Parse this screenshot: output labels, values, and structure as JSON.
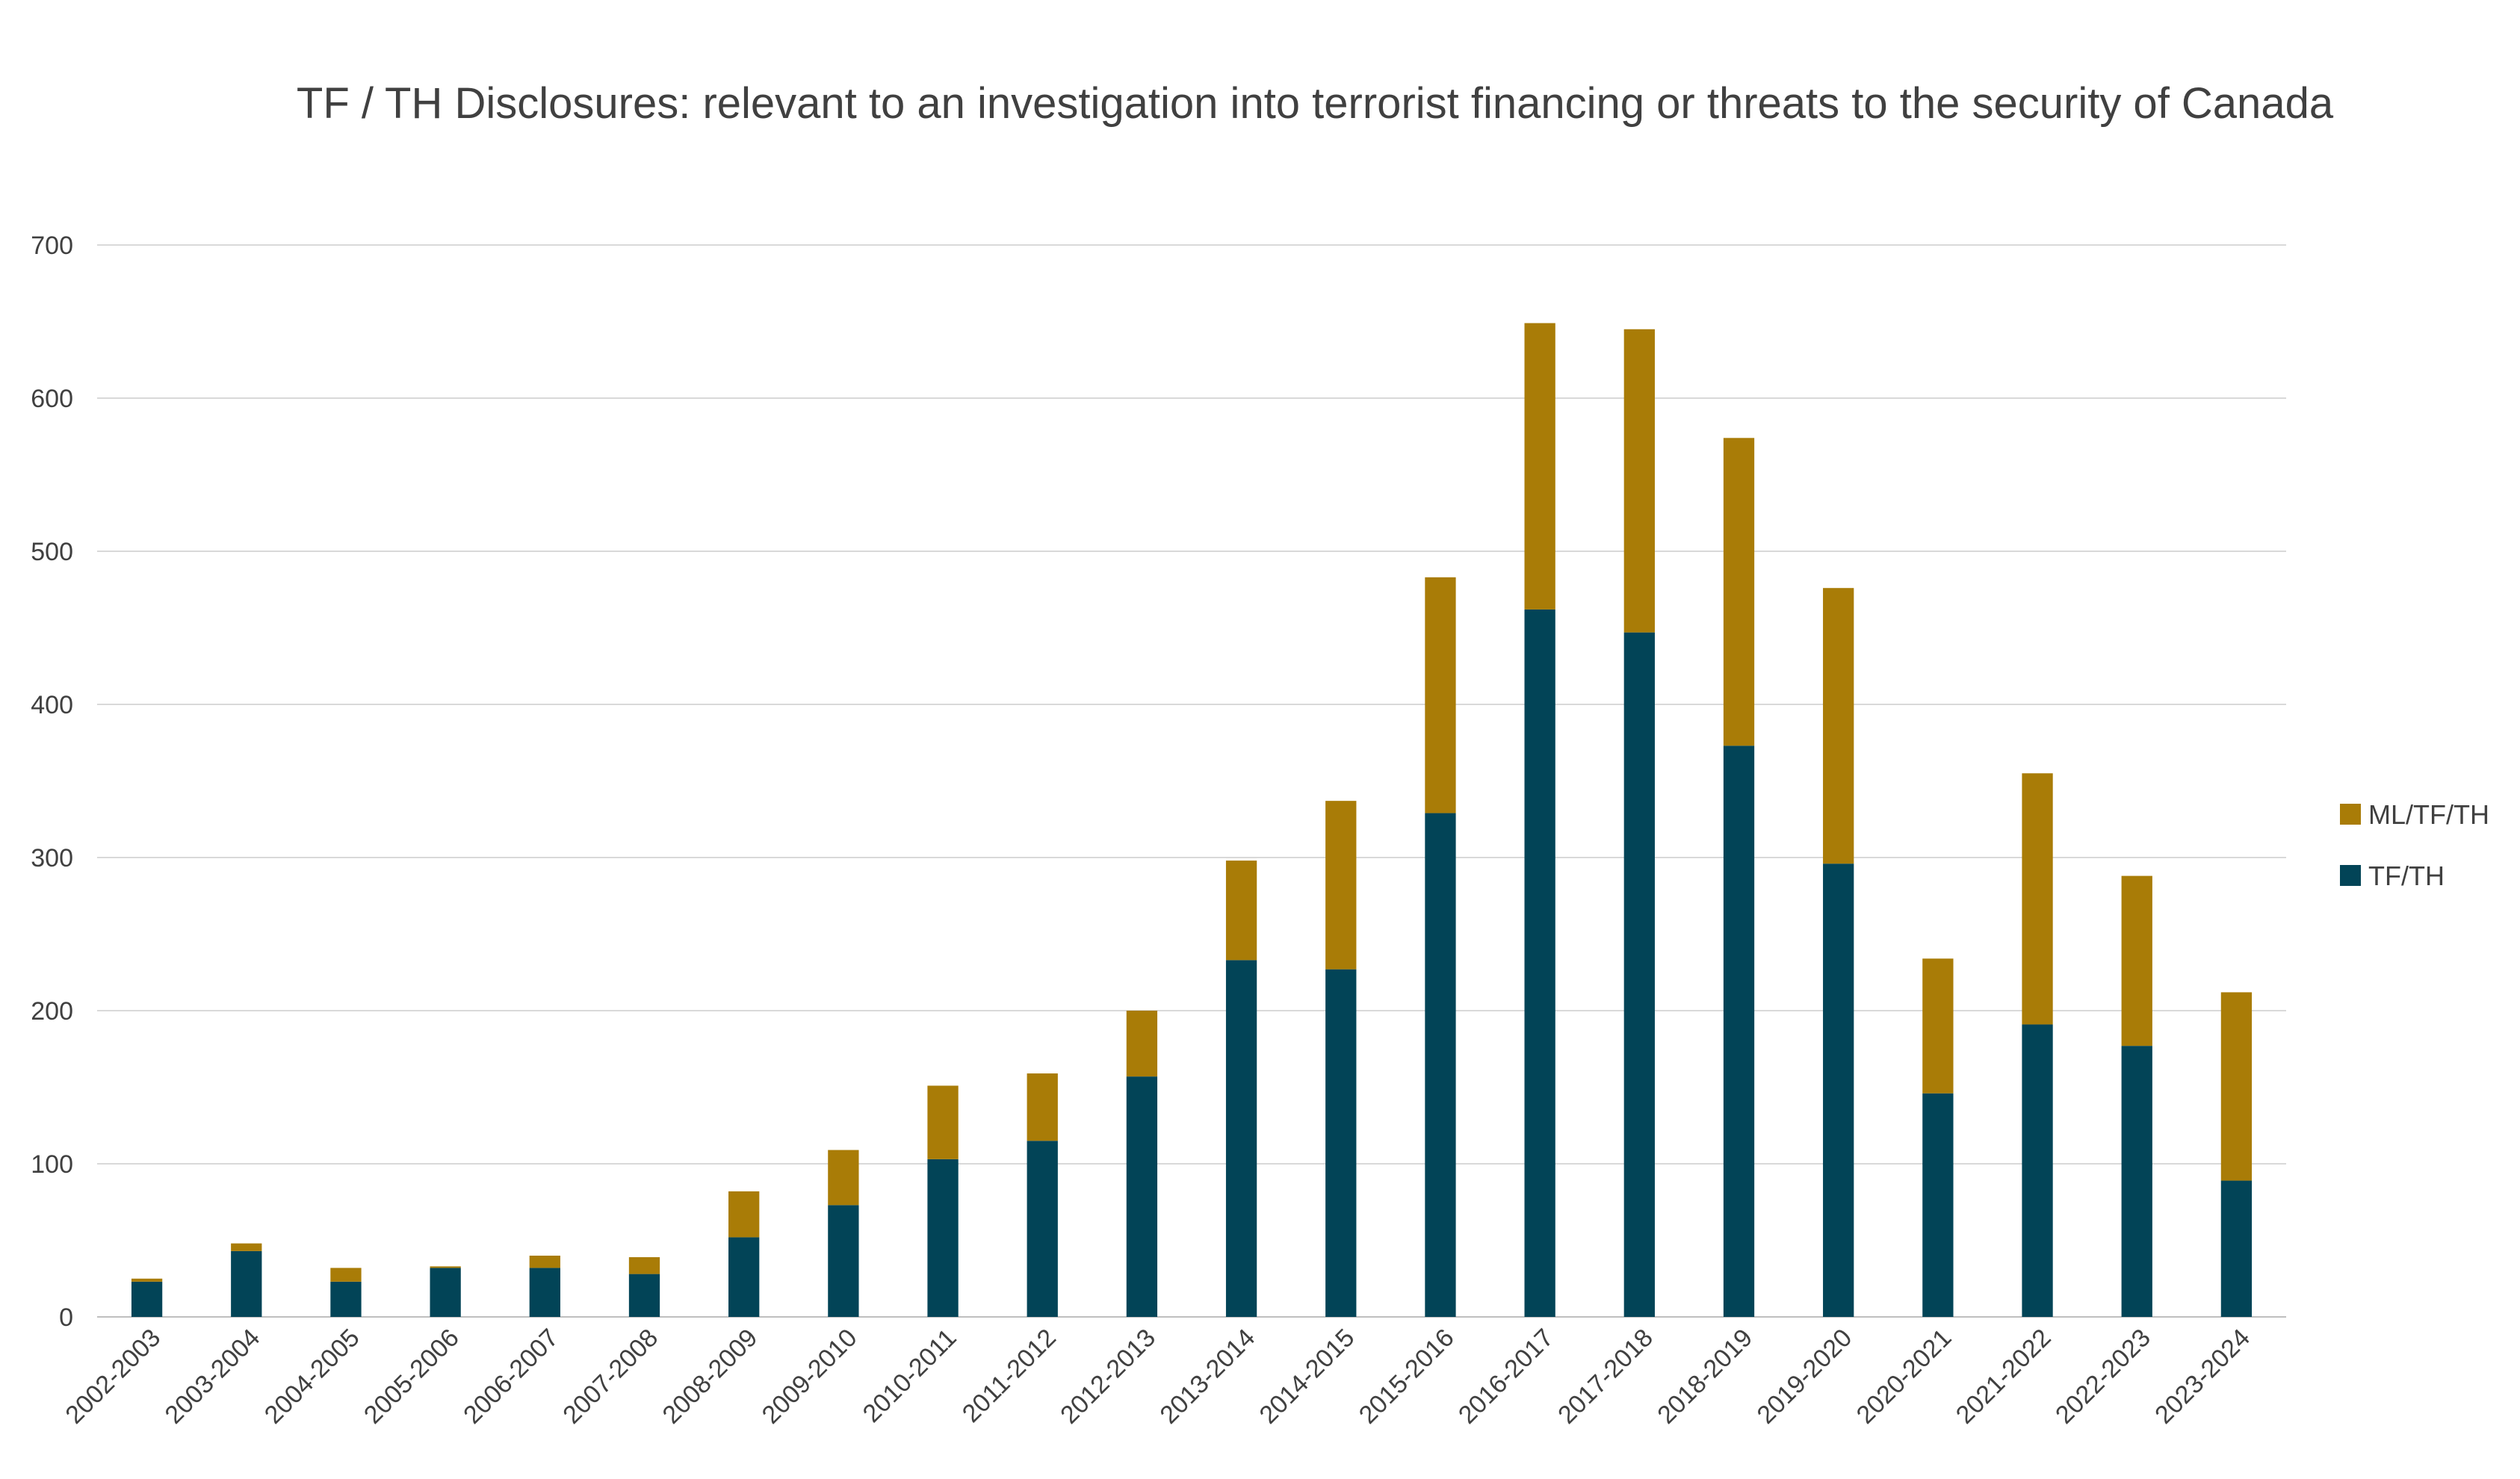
{
  "chart_data": {
    "type": "bar",
    "stacked": true,
    "title": "TF / TH Disclosures: relevant to an investigation into terrorist financing or threats to the security of Canada",
    "xlabel": "",
    "ylabel": "",
    "ylim": [
      0,
      700
    ],
    "yticks": [
      0,
      100,
      200,
      300,
      400,
      500,
      600,
      700
    ],
    "grid": true,
    "legend_position": "right",
    "categories": [
      "2002-2003",
      "2003-2004",
      "2004-2005",
      "2005-2006",
      "2006-2007",
      "2007-2008",
      "2008-2009",
      "2009-2010",
      "2010-2011",
      "2011-2012",
      "2012-2013",
      "2013-2014",
      "2014-2015",
      "2015-2016",
      "2016-2017",
      "2017-2018",
      "2018-2019",
      "2019-2020",
      "2020-2021",
      "2021-2022",
      "2022-2023",
      "2023-2024"
    ],
    "series": [
      {
        "name": "TF/TH",
        "color": "#024457",
        "values": [
          23,
          43,
          23,
          32,
          32,
          28,
          52,
          73,
          103,
          115,
          157,
          233,
          227,
          329,
          462,
          447,
          373,
          296,
          146,
          191,
          177,
          89
        ]
      },
      {
        "name": "ML/TF/TH",
        "color": "#A97C07",
        "values": [
          2,
          5,
          9,
          1,
          8,
          11,
          30,
          36,
          48,
          44,
          43,
          65,
          110,
          154,
          187,
          198,
          201,
          180,
          88,
          164,
          111,
          123
        ]
      }
    ]
  }
}
